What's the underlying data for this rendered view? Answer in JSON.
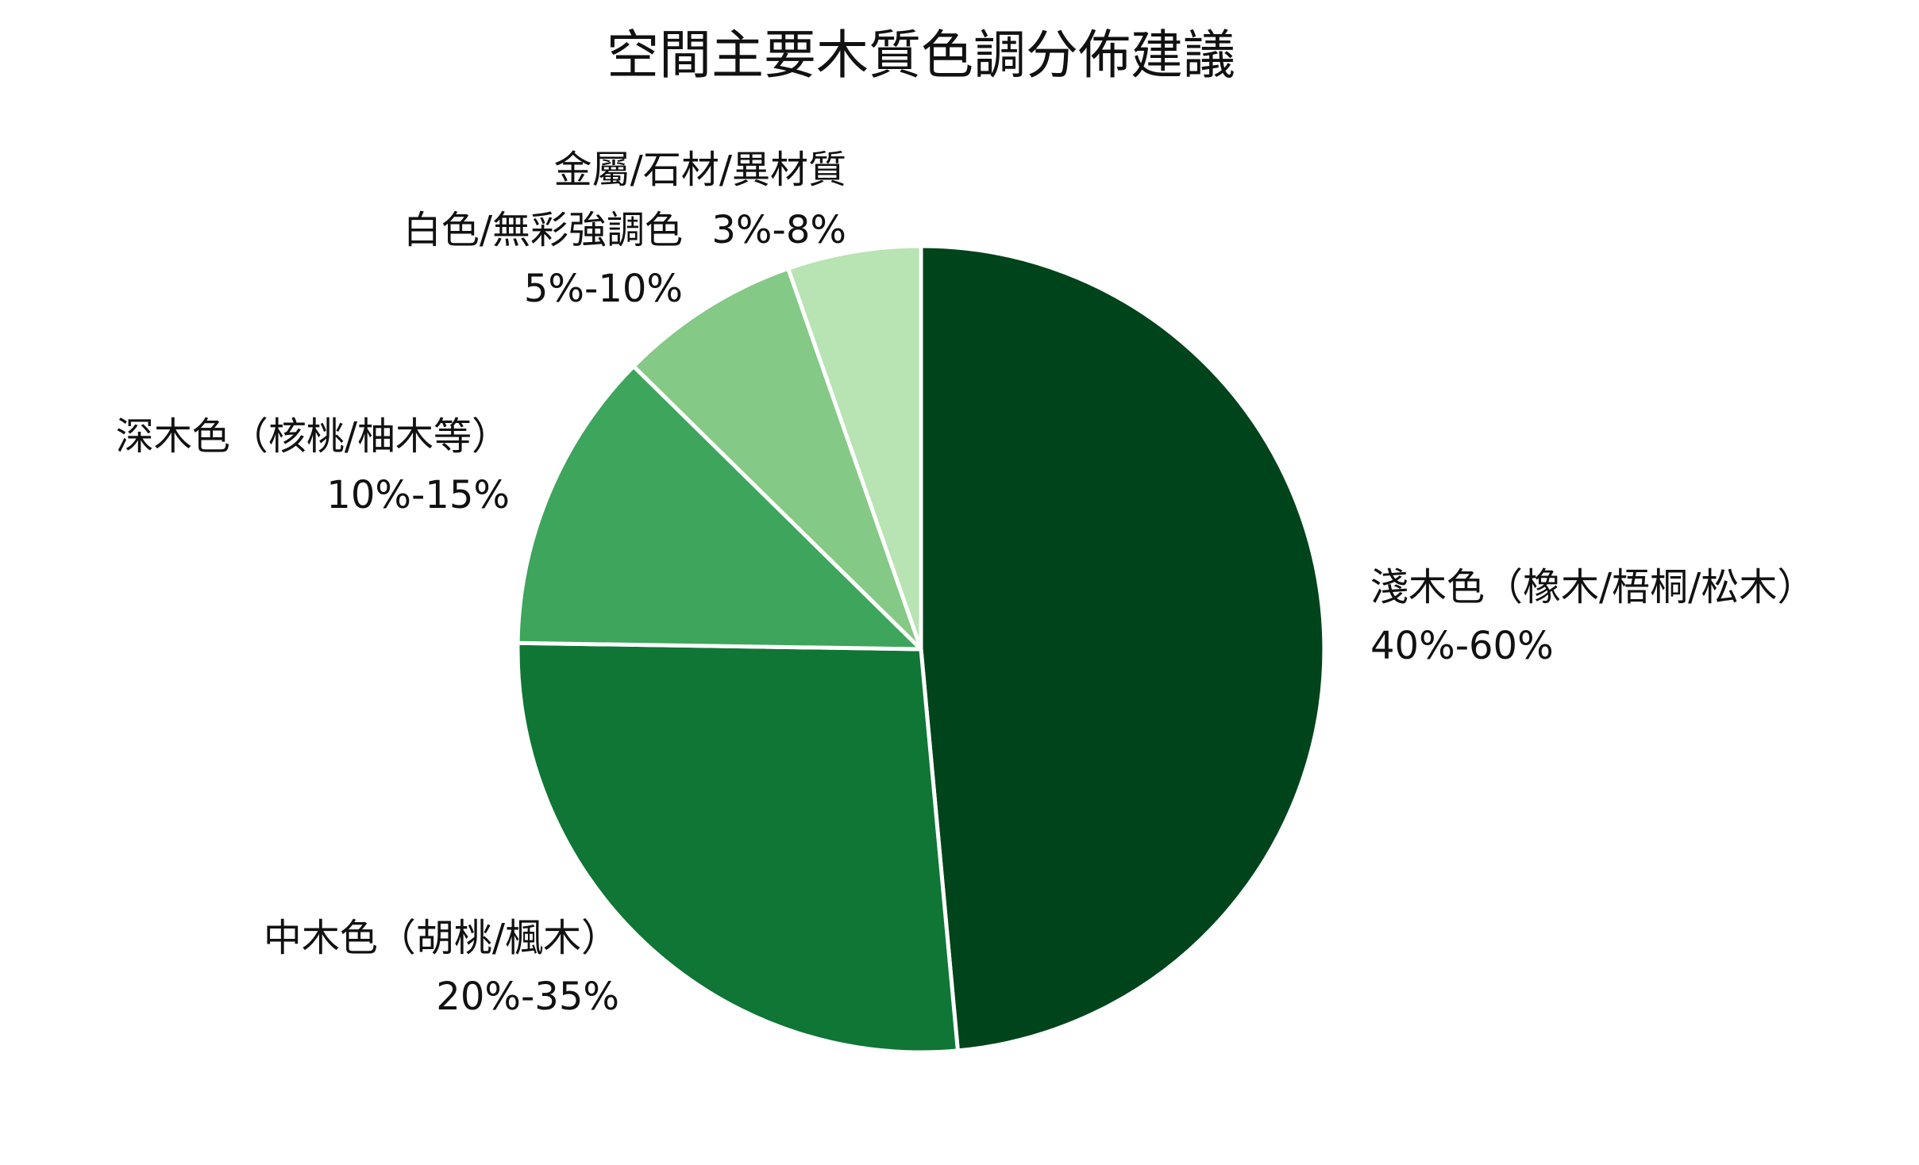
{
  "chart_data": {
    "type": "pie",
    "title": "空間主要木質色調分佈建議",
    "slices": [
      {
        "label": "淺木色（橡木/梧桐/松木）",
        "range_text": "40%-60%",
        "value": 50,
        "color": "#00441b"
      },
      {
        "label": "中木色（胡桃/楓木）",
        "range_text": "20%-35%",
        "value": 27.5,
        "color": "#0f7635"
      },
      {
        "label": "深木色（核桃/柚木等）",
        "range_text": "10%-15%",
        "value": 12.5,
        "color": "#3ea55c"
      },
      {
        "label": "白色/無彩強調色",
        "range_text": "5%-10%",
        "value": 7.5,
        "color": "#84c985"
      },
      {
        "label": "金屬/石材/異材質",
        "range_text": "3%-8%",
        "value": 5.5,
        "color": "#b8e3b2"
      }
    ],
    "start_angle": "12 o'clock",
    "direction": "clockwise",
    "slice_border_color": "#ffffff",
    "legend": "none"
  }
}
